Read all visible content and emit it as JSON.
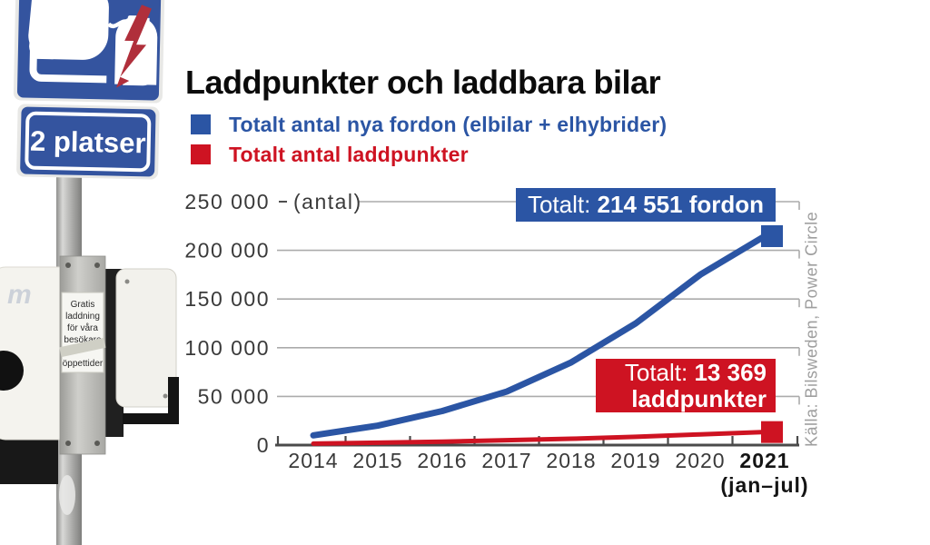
{
  "title": "Laddpunkter och laddbara bilar",
  "legend": {
    "items": [
      {
        "label": "Totalt antal nya fordon (elbilar + elhybrider)",
        "color": "#2b55a4"
      },
      {
        "label": "Totalt antal laddpunkter",
        "color": "#ce1322"
      }
    ]
  },
  "annotations": {
    "vehicles_prefix": "Totalt: ",
    "vehicles_value": "214 551 fordon",
    "chargers_prefix": "Totalt: ",
    "chargers_value": "13 369",
    "chargers_word": "laddpunkter"
  },
  "axis_unit": "(antal)",
  "source": "Källa: Bilsweden, Power Circle",
  "photo": {
    "sign_places_text": "2 platser",
    "charger_logo_text": "m",
    "note_lines": [
      "Gratis",
      "laddning",
      "för våra",
      "besökare",
      "öppettider"
    ],
    "icons": [
      "ev-car-plug-icon",
      "lightning-bolt-icon"
    ]
  },
  "colors": {
    "blue": "#2b55a4",
    "red": "#ce1322",
    "grid": "#ababab",
    "axis": "#4a4a4a",
    "label_text": "#3a3a3a",
    "source_text": "#9e9e9e",
    "sign_blue": "#34549f",
    "bolt_red": "#b02f3b"
  },
  "chart_data": {
    "type": "line",
    "categories": [
      "2014",
      "2015",
      "2016",
      "2017",
      "2018",
      "2019",
      "2020",
      "2021"
    ],
    "bold_category": "2021",
    "x_sublabel": {
      "category": "2021",
      "text": "(jan–jul)"
    },
    "series": [
      {
        "name": "Totalt antal nya fordon (elbilar + elhybrider)",
        "color": "#2b55a4",
        "values": [
          10000,
          20000,
          35000,
          55000,
          85000,
          125000,
          175000,
          214551
        ],
        "end_total": 214551,
        "end_label": "Totalt: 214 551 fordon"
      },
      {
        "name": "Totalt antal laddpunkter",
        "color": "#ce1322",
        "values": [
          1500,
          2500,
          3500,
          5000,
          6500,
          8500,
          11000,
          13369
        ],
        "end_total": 13369,
        "end_label": "Totalt: 13 369 laddpunkter"
      }
    ],
    "ylim": [
      0,
      250000
    ],
    "y_ticks": [
      {
        "value": 0,
        "label": "0"
      },
      {
        "value": 50000,
        "label": "50 000"
      },
      {
        "value": 100000,
        "label": "100 000"
      },
      {
        "value": 150000,
        "label": "150 000"
      },
      {
        "value": 200000,
        "label": "200 000"
      },
      {
        "value": 250000,
        "label": "250 000"
      }
    ],
    "grid": true,
    "legend_position": "top-left",
    "ylabel": "(antal)"
  }
}
